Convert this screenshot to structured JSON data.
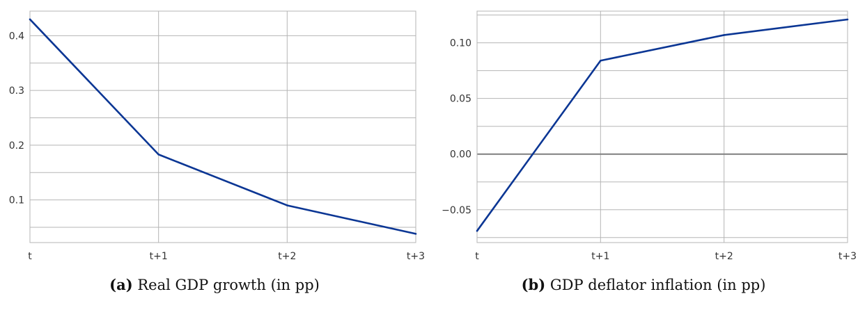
{
  "chart_data": [
    {
      "type": "line",
      "x": [
        "t",
        "t+1",
        "t+2",
        "t+3"
      ],
      "series": [
        {
          "values": [
            0.43,
            0.183,
            0.09,
            0.038
          ],
          "color": "#0b3694"
        }
      ],
      "yticks": [
        0.1,
        0.2,
        0.3,
        0.4
      ],
      "ytick_labels": [
        "0.1",
        "0.2",
        "0.3",
        "0.4"
      ],
      "ylim": [
        0.022,
        0.445
      ],
      "minor_y_step": 0.05,
      "zero_line": false,
      "grid": true,
      "caption_tag": "(a)",
      "caption_text": "Real GDP growth (in pp)"
    },
    {
      "type": "line",
      "x": [
        "t",
        "t+1",
        "t+2",
        "t+3"
      ],
      "series": [
        {
          "values": [
            -0.069,
            0.084,
            0.107,
            0.121
          ],
          "color": "#0b3694"
        }
      ],
      "yticks": [
        -0.05,
        0.0,
        0.05,
        0.1
      ],
      "ytick_labels": [
        "−0.05",
        "0.00",
        "0.05",
        "0.10"
      ],
      "ylim": [
        -0.0795,
        0.1285
      ],
      "minor_y_step": 0.025,
      "zero_line": true,
      "grid": true,
      "caption_tag": "(b)",
      "caption_text": "GDP deflator inflation (in pp)"
    }
  ]
}
